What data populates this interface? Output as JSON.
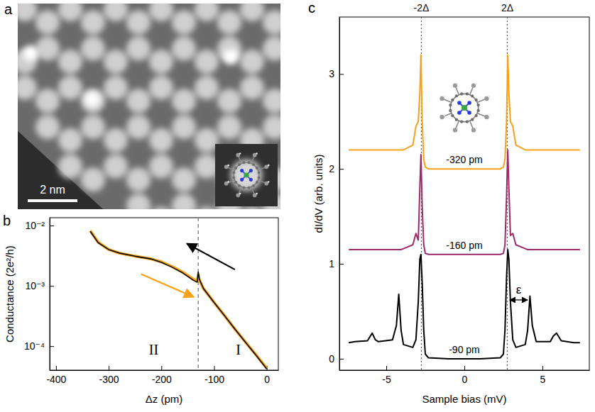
{
  "chart_data": [
    {
      "type": "image",
      "panel_label": "a",
      "scale_bar_label": "2 nm"
    },
    {
      "type": "line",
      "panel_label": "b",
      "x_label": "Δz (pm)",
      "y_label": "Conductance (2e²/h)",
      "log": "y",
      "xlim": [
        -412,
        22
      ],
      "xticks": [
        -400,
        -300,
        -200,
        -100,
        0
      ],
      "ylim": [
        4e-05,
        0.0135
      ],
      "yticks": [
        {
          "value": 0.0001,
          "label": "10⁻⁴"
        },
        {
          "value": 0.001,
          "label": "10⁻³"
        },
        {
          "value": 0.01,
          "label": "10⁻²"
        }
      ],
      "vline": -130,
      "region_labels": [
        "II",
        "I"
      ],
      "series": [
        {
          "color": "#f7a11a",
          "x": [
            0,
            -20,
            -40,
            -60,
            -80,
            -100,
            -120,
            -128,
            -130,
            -132,
            -140,
            -160,
            -180,
            -200,
            -220,
            -250,
            -280,
            -300,
            -320,
            -335
          ],
          "values": [
            4.3e-05,
            7.1e-05,
            0.000116,
            0.00019,
            0.00032,
            0.00053,
            0.0009,
            0.00125,
            0.00155,
            0.0012,
            0.0013,
            0.0017,
            0.0021,
            0.0025,
            0.0028,
            0.0031,
            0.0035,
            0.004,
            0.0053,
            0.0082
          ]
        },
        {
          "color": "#000000",
          "x": [
            0,
            -20,
            -40,
            -60,
            -80,
            -100,
            -120,
            -128,
            -130,
            -132,
            -140,
            -160,
            -180,
            -200,
            -220,
            -250,
            -280,
            -300,
            -320,
            -335
          ],
          "values": [
            4.2e-05,
            7e-05,
            0.000115,
            0.00019,
            0.00032,
            0.00053,
            0.0009,
            0.0013,
            0.0017,
            0.00115,
            0.00125,
            0.00165,
            0.00205,
            0.00245,
            0.0028,
            0.0031,
            0.0035,
            0.004,
            0.0052,
            0.008
          ]
        }
      ]
    },
    {
      "type": "line",
      "panel_label": "c",
      "x_label": "Sample bias (mV)",
      "y_label": "dI/dV (arb. units)",
      "xlim": [
        -8,
        8
      ],
      "xticks": [
        -5,
        0,
        5
      ],
      "ylim": [
        -0.12,
        3.6
      ],
      "yticks": [
        0,
        1,
        2,
        3
      ],
      "vlines": [
        {
          "value": -2.75,
          "label": "-2Δ"
        },
        {
          "value": 2.75,
          "label": "2Δ"
        }
      ],
      "annotation": {
        "text": "ε",
        "x": [
          2.9,
          4.05
        ],
        "y": 0.62
      },
      "x": [
        -7.4,
        -7,
        -6.2,
        -5.9,
        -5.7,
        -5.5,
        -4.6,
        -4.35,
        -4.2,
        -4.05,
        -3.9,
        -3.3,
        -3.1,
        -2.95,
        -2.85,
        -2.78,
        -2.7,
        -2.6,
        -2.5,
        -2.3,
        -1,
        0,
        1,
        2.3,
        2.5,
        2.6,
        2.7,
        2.78,
        2.85,
        2.95,
        3.1,
        3.3,
        3.9,
        4.05,
        4.2,
        4.35,
        4.6,
        5.5,
        5.7,
        5.9,
        6.2,
        7,
        7.4
      ],
      "series": [
        {
          "name": "-320 pm",
          "color": "#f7a11a",
          "values": [
            2.2,
            2.2,
            2.2,
            2.2,
            2.2,
            2.2,
            2.2,
            2.2,
            2.2,
            2.2,
            2.2,
            2.25,
            2.45,
            2.5,
            2.8,
            3.2,
            2.5,
            2.1,
            2.02,
            2.0,
            2.0,
            2.0,
            2.0,
            2.0,
            2.02,
            2.1,
            2.5,
            3.2,
            2.8,
            2.5,
            2.45,
            2.25,
            2.2,
            2.2,
            2.2,
            2.2,
            2.2,
            2.2,
            2.2,
            2.2,
            2.2,
            2.2,
            2.2
          ]
        },
        {
          "name": "-160 pm",
          "color": "#9c2a6b",
          "values": [
            1.15,
            1.15,
            1.15,
            1.15,
            1.15,
            1.15,
            1.15,
            1.15,
            1.15,
            1.15,
            1.16,
            1.2,
            1.32,
            1.25,
            1.8,
            2.15,
            1.6,
            1.2,
            1.11,
            1.1,
            1.1,
            1.1,
            1.1,
            1.1,
            1.11,
            1.2,
            1.7,
            2.2,
            1.8,
            1.3,
            1.32,
            1.2,
            1.16,
            1.15,
            1.15,
            1.15,
            1.15,
            1.15,
            1.15,
            1.15,
            1.15,
            1.15,
            1.15
          ]
        },
        {
          "name": "-90 pm",
          "color": "#000000",
          "values": [
            0.17,
            0.18,
            0.19,
            0.27,
            0.2,
            0.18,
            0.2,
            0.35,
            0.68,
            0.3,
            0.15,
            0.12,
            0.2,
            0.6,
            1.05,
            1.1,
            0.8,
            0.3,
            0.05,
            0.01,
            0,
            0,
            0,
            0.01,
            0.05,
            0.3,
            0.85,
            1.15,
            1.05,
            0.6,
            0.2,
            0.12,
            0.15,
            0.3,
            0.66,
            0.35,
            0.18,
            0.18,
            0.24,
            0.27,
            0.19,
            0.17,
            0.17
          ]
        }
      ]
    }
  ]
}
